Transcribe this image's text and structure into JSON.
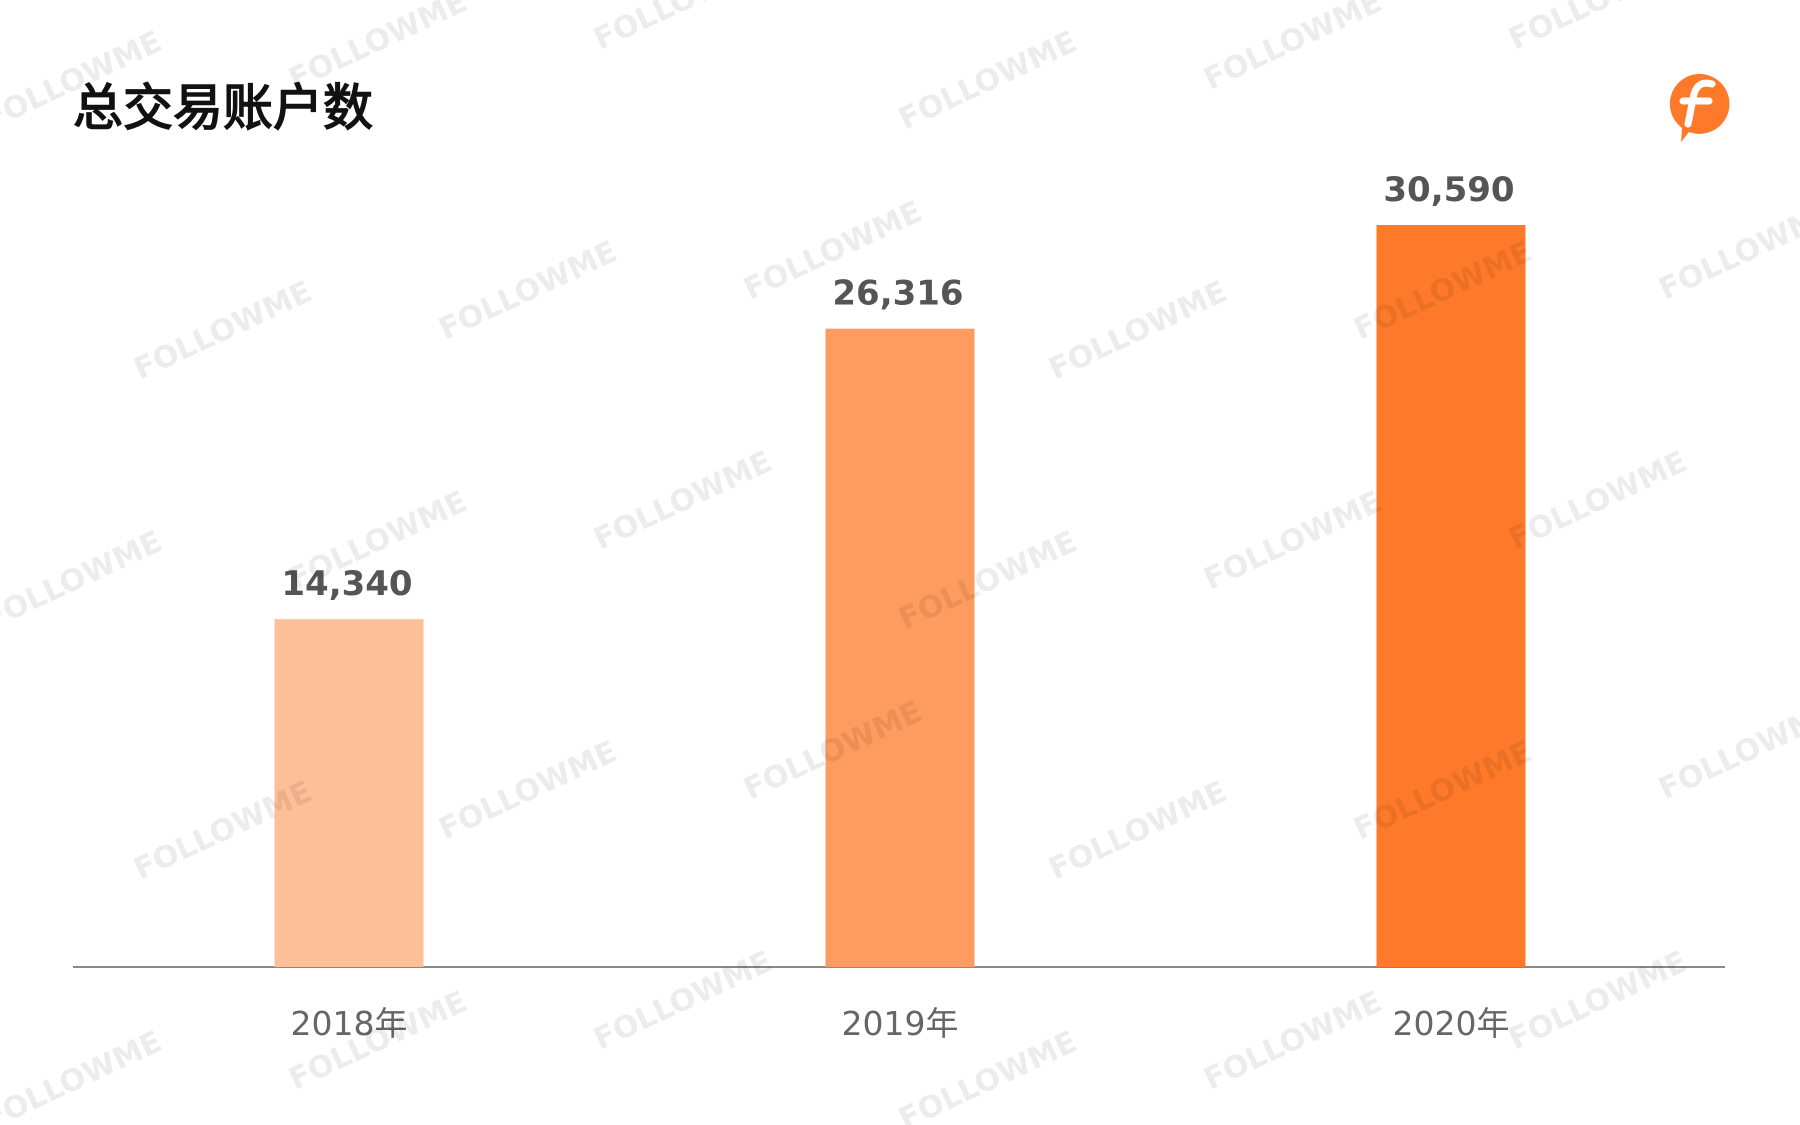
{
  "chart_data": {
    "type": "bar",
    "title": "总交易账户数",
    "categories": [
      "2018年",
      "2019年",
      "2020年"
    ],
    "values": [
      14340,
      26316,
      30590
    ],
    "value_labels": [
      "14,340",
      "26,316",
      "30,590"
    ],
    "colors": [
      "#fdbf98",
      "#fe9b5f",
      "#fe7a2a"
    ]
  },
  "watermark": "FOLLOWME"
}
